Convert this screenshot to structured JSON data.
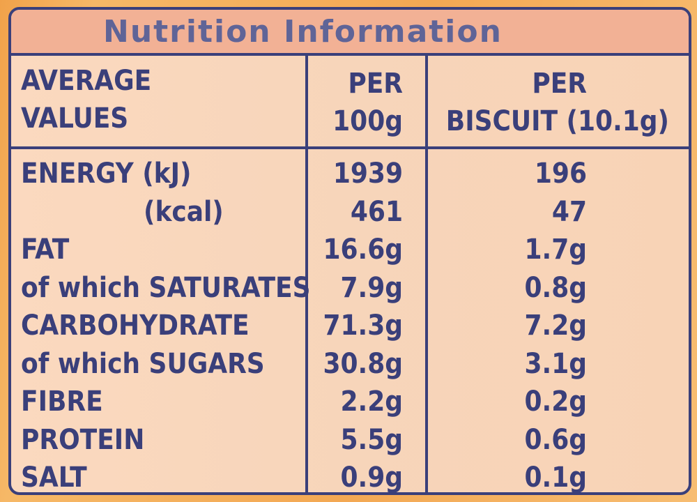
{
  "title": "Nutrition Information",
  "headers": {
    "label_line1": "AVERAGE",
    "label_line2": "VALUES",
    "per100_line1": "PER",
    "per100_line2": "100g",
    "perbiscuit_line1": "PER",
    "perbiscuit_line2": "BISCUIT (10.1g)"
  },
  "rows": [
    {
      "label": "ENERGY (kJ)",
      "per100": "1939",
      "perbiscuit": "196"
    },
    {
      "label": "(kcal)",
      "per100": "461",
      "perbiscuit": "47"
    },
    {
      "label": "FAT",
      "per100": "16.6g",
      "perbiscuit": "1.7g"
    },
    {
      "label": "of which SATURATES",
      "per100": "7.9g",
      "perbiscuit": "0.8g"
    },
    {
      "label": "CARBOHYDRATE",
      "per100": "71.3g",
      "perbiscuit": "7.2g"
    },
    {
      "label": "of which SUGARS",
      "per100": "30.8g",
      "perbiscuit": "3.1g"
    },
    {
      "label": "FIBRE",
      "per100": "2.2g",
      "perbiscuit": "0.2g"
    },
    {
      "label": "PROTEIN",
      "per100": "5.5g",
      "perbiscuit": "0.6g"
    },
    {
      "label": "SALT",
      "per100": "0.9g",
      "perbiscuit": "0.1g"
    }
  ],
  "colors": {
    "ink": "#3a3f7a",
    "panel": "#f7d5ba",
    "title_band": "#f2b195",
    "packaging": "#f3a853"
  }
}
